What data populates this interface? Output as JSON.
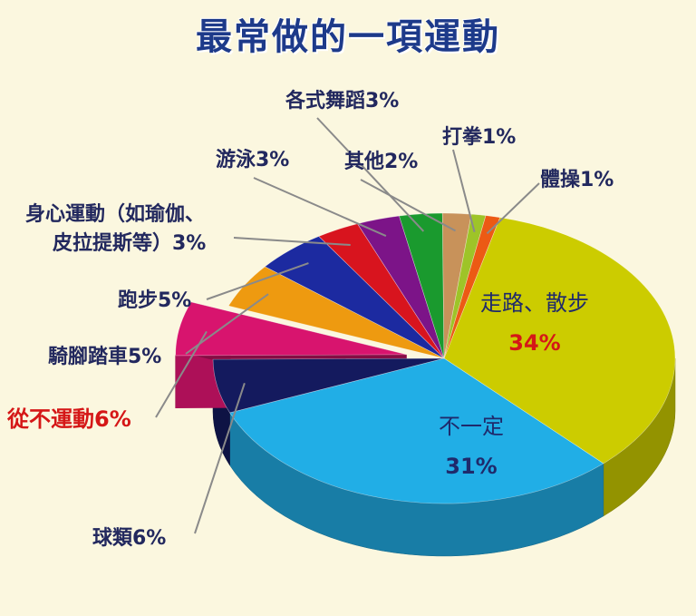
{
  "chart_data": {
    "type": "pie",
    "title": "最常做的一項運動",
    "slices": [
      {
        "label": "走路、散步",
        "value": 34,
        "value_label": "34%",
        "color": "#cccc00"
      },
      {
        "label": "不一定",
        "value": 31,
        "value_label": "31%",
        "color": "#21aee6"
      },
      {
        "label": "球類6%",
        "value": 6,
        "color": "#141a5e"
      },
      {
        "label": "從不運動6%",
        "value": 6,
        "color": "#d8146e",
        "exploded": true
      },
      {
        "label": "騎腳踏車5%",
        "value": 5,
        "color": "#ee9a10"
      },
      {
        "label": "跑步5%",
        "value": 5,
        "color": "#1c2aa0"
      },
      {
        "label": "身心運動（如瑜伽、",
        "label_line2": "皮拉提斯等）3%",
        "value": 3,
        "color": "#d8141e"
      },
      {
        "label": "游泳3%",
        "value": 3,
        "color": "#7c1488"
      },
      {
        "label": "各式舞蹈3%",
        "value": 3,
        "color": "#1a9a2e"
      },
      {
        "label": "其他2%",
        "value": 2,
        "color": "#c8925a"
      },
      {
        "label": "打拳1%",
        "value": 1,
        "color": "#9ec428"
      },
      {
        "label": "體操1%",
        "value": 1,
        "color": "#ec5a14"
      }
    ]
  }
}
